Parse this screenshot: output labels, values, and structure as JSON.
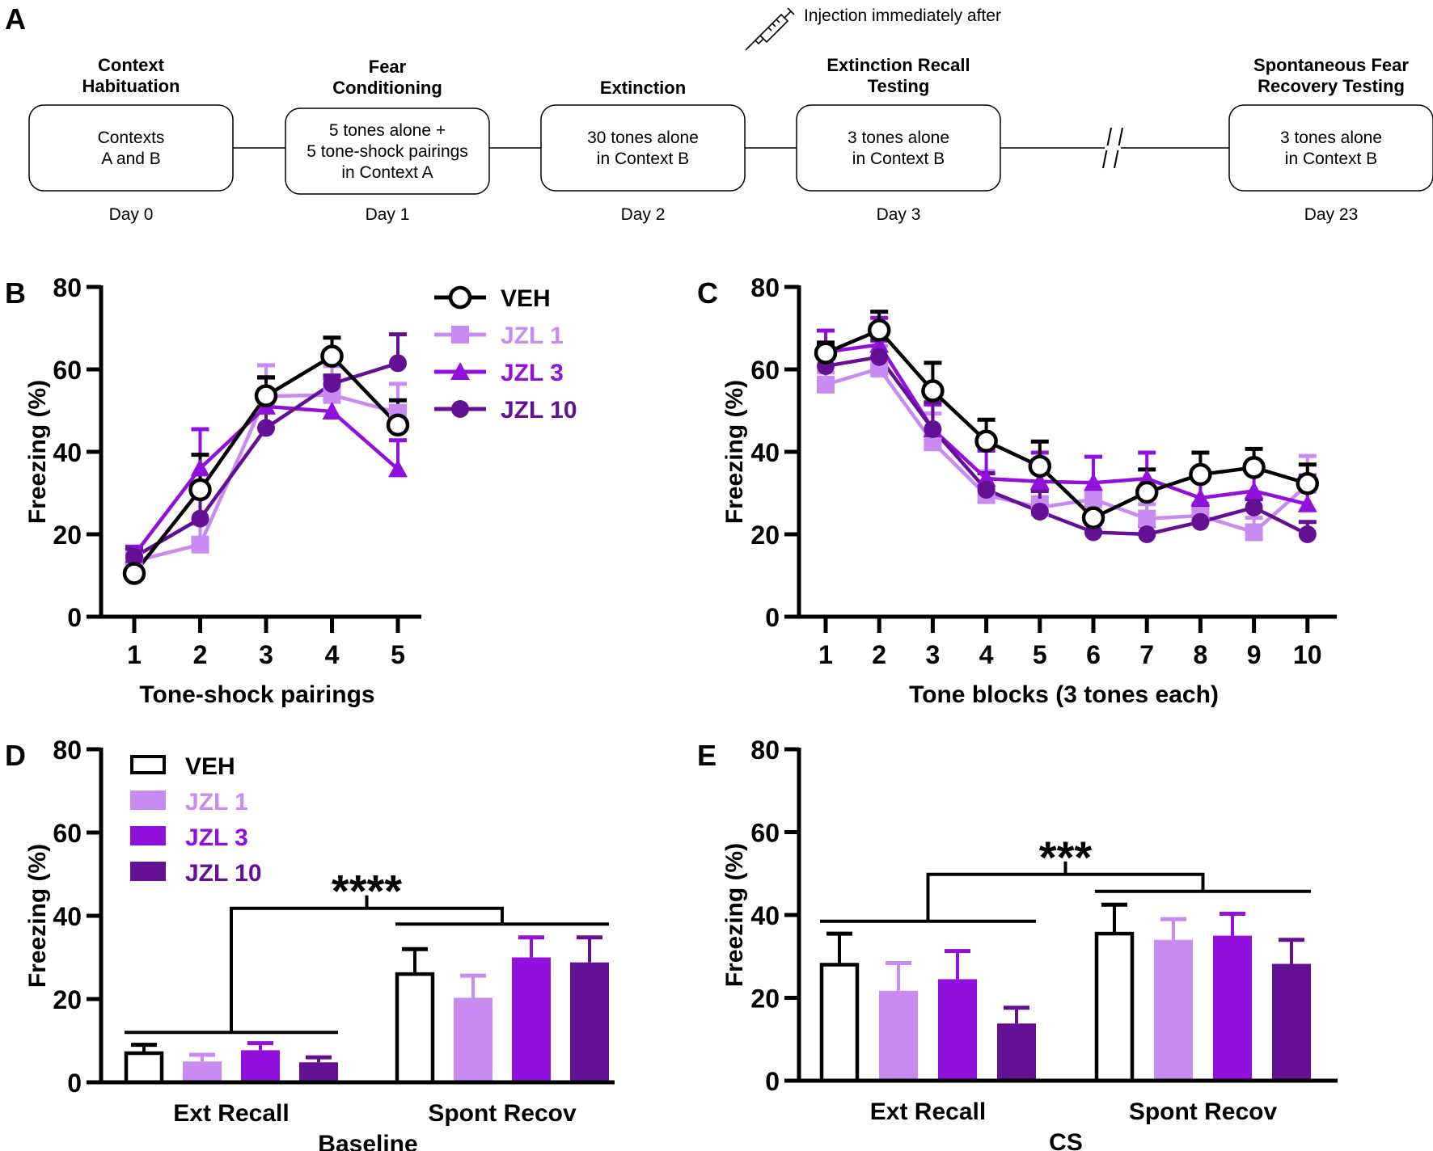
{
  "colors": {
    "VEH": "#000000",
    "JZL 1": "#c98af2",
    "JZL 3": "#9210dc",
    "JZL 10": "#641095"
  },
  "panelA": {
    "label": "A",
    "injection_note": "Injection immediately after",
    "steps": [
      {
        "title": [
          "Context",
          "Habituation"
        ],
        "body": [
          "Contexts",
          "A and B"
        ],
        "day": "Day 0"
      },
      {
        "title": [
          "Fear",
          "Conditioning"
        ],
        "body": [
          "5 tones alone +",
          "5 tone-shock pairings",
          "in Context A"
        ],
        "day": "Day 1"
      },
      {
        "title": [
          "Extinction"
        ],
        "body": [
          "30 tones alone",
          "in Context B"
        ],
        "day": "Day 2"
      },
      {
        "title": [
          "Extinction Recall",
          "Testing"
        ],
        "body": [
          "3 tones alone",
          "in Context B"
        ],
        "day": "Day 3"
      },
      {
        "title": [
          "Spontaneous Fear",
          "Recovery Testing"
        ],
        "body": [
          "3 tones alone",
          "in Context B"
        ],
        "day": "Day 23"
      }
    ]
  },
  "chart_data": [
    {
      "panel": "B",
      "type": "line",
      "xlabel": "Tone-shock pairings",
      "ylabel": "Freezing (%)",
      "ylim": [
        0,
        80
      ],
      "yticks": [
        0,
        20,
        40,
        60,
        80
      ],
      "x": [
        1,
        2,
        3,
        4,
        5
      ],
      "legend": "top-right",
      "series": [
        {
          "name": "VEH",
          "marker": "open-circle",
          "values": [
            10.5,
            30.8,
            53.6,
            63.2,
            46.5
          ],
          "err": [
            2.5,
            8.5,
            4.5,
            4.5,
            6
          ]
        },
        {
          "name": "JZL 1",
          "marker": "square",
          "values": [
            13.5,
            17.5,
            53.5,
            53.8,
            49.5
          ],
          "err": [
            2.5,
            5,
            7.5,
            7,
            7
          ]
        },
        {
          "name": "JZL 3",
          "marker": "triangle",
          "values": [
            15,
            36,
            51,
            49.8,
            35.8
          ],
          "err": [
            2,
            9.5,
            7,
            8,
            7
          ]
        },
        {
          "name": "JZL 10",
          "marker": "filled-circle",
          "values": [
            14.5,
            23.8,
            45.8,
            56.5,
            61.5
          ],
          "err": [
            2,
            6,
            8,
            2,
            7
          ]
        }
      ]
    },
    {
      "panel": "C",
      "type": "line",
      "xlabel": "Tone blocks (3 tones each)",
      "ylabel": "Freezing (%)",
      "ylim": [
        0,
        80
      ],
      "yticks": [
        0,
        20,
        40,
        60,
        80
      ],
      "x": [
        1,
        2,
        3,
        4,
        5,
        6,
        7,
        8,
        9,
        10
      ],
      "series": [
        {
          "name": "VEH",
          "marker": "open-circle",
          "values": [
            64,
            69.5,
            54.8,
            42.6,
            36.5,
            24,
            30.2,
            34.5,
            36.2,
            32.3
          ],
          "err": [
            2.5,
            4.5,
            6.8,
            5.2,
            6,
            4.5,
            5.5,
            5.3,
            4.5,
            4.6
          ]
        },
        {
          "name": "JZL 1",
          "marker": "square",
          "values": [
            56.3,
            60.2,
            42.3,
            29.5,
            26.5,
            28.5,
            23.8,
            24.5,
            20.5,
            32
          ],
          "err": [
            3,
            5.5,
            7,
            5.8,
            2.5,
            2,
            3.5,
            3,
            3.5,
            7
          ]
        },
        {
          "name": "JZL 3",
          "marker": "triangle",
          "values": [
            64.2,
            66,
            45.5,
            33.5,
            32.8,
            32.5,
            33.5,
            28.8,
            30.5,
            27.3
          ],
          "err": [
            5.2,
            6.5,
            6,
            6.8,
            7,
            6.3,
            6.3,
            5,
            5.5,
            7
          ]
        },
        {
          "name": "JZL 10",
          "marker": "filled-circle",
          "values": [
            60.8,
            63,
            45.5,
            30.8,
            25.5,
            20.5,
            20,
            23,
            26.5,
            20
          ],
          "err": [
            5.5,
            4,
            6.5,
            4,
            5,
            2,
            2,
            3.5,
            2,
            3
          ]
        }
      ]
    },
    {
      "panel": "D",
      "type": "bar",
      "title": "Baseline",
      "ylabel": "Freezing (%)",
      "ylim": [
        0,
        80
      ],
      "yticks": [
        0,
        20,
        40,
        60,
        80
      ],
      "categories": [
        "Ext Recall",
        "Spont Recov"
      ],
      "legend": "top-left",
      "series": [
        {
          "name": "VEH",
          "values": [
            7,
            26
          ],
          "err": [
            2,
            6
          ]
        },
        {
          "name": "JZL 1",
          "values": [
            5,
            20.3
          ],
          "err": [
            1.6,
            5.3
          ]
        },
        {
          "name": "JZL 3",
          "values": [
            7.7,
            30
          ],
          "err": [
            1.7,
            4.8
          ]
        },
        {
          "name": "JZL 10",
          "values": [
            4.8,
            28.8
          ],
          "err": [
            1.2,
            6
          ]
        }
      ],
      "significance": {
        "label": "****",
        "group_bar_ext": 12,
        "group_bar_spont": 38,
        "bracket_top": 41.8
      }
    },
    {
      "panel": "E",
      "type": "bar",
      "title": "CS",
      "ylabel": "Freezing (%)",
      "ylim": [
        0,
        80
      ],
      "yticks": [
        0,
        20,
        40,
        60,
        80
      ],
      "categories": [
        "Ext Recall",
        "Spont Recov"
      ],
      "series": [
        {
          "name": "VEH",
          "values": [
            28,
            35.5
          ],
          "err": [
            7.5,
            7
          ]
        },
        {
          "name": "JZL 1",
          "values": [
            21.7,
            34
          ],
          "err": [
            6.7,
            5
          ]
        },
        {
          "name": "JZL 3",
          "values": [
            24.5,
            35
          ],
          "err": [
            6.8,
            5.3
          ]
        },
        {
          "name": "JZL 10",
          "values": [
            13.8,
            28.2
          ],
          "err": [
            3.8,
            5.8
          ]
        }
      ],
      "significance": {
        "label": "***",
        "group_bar_ext": 38.5,
        "group_bar_spont": 45.7,
        "bracket_top": 49.8
      }
    }
  ]
}
